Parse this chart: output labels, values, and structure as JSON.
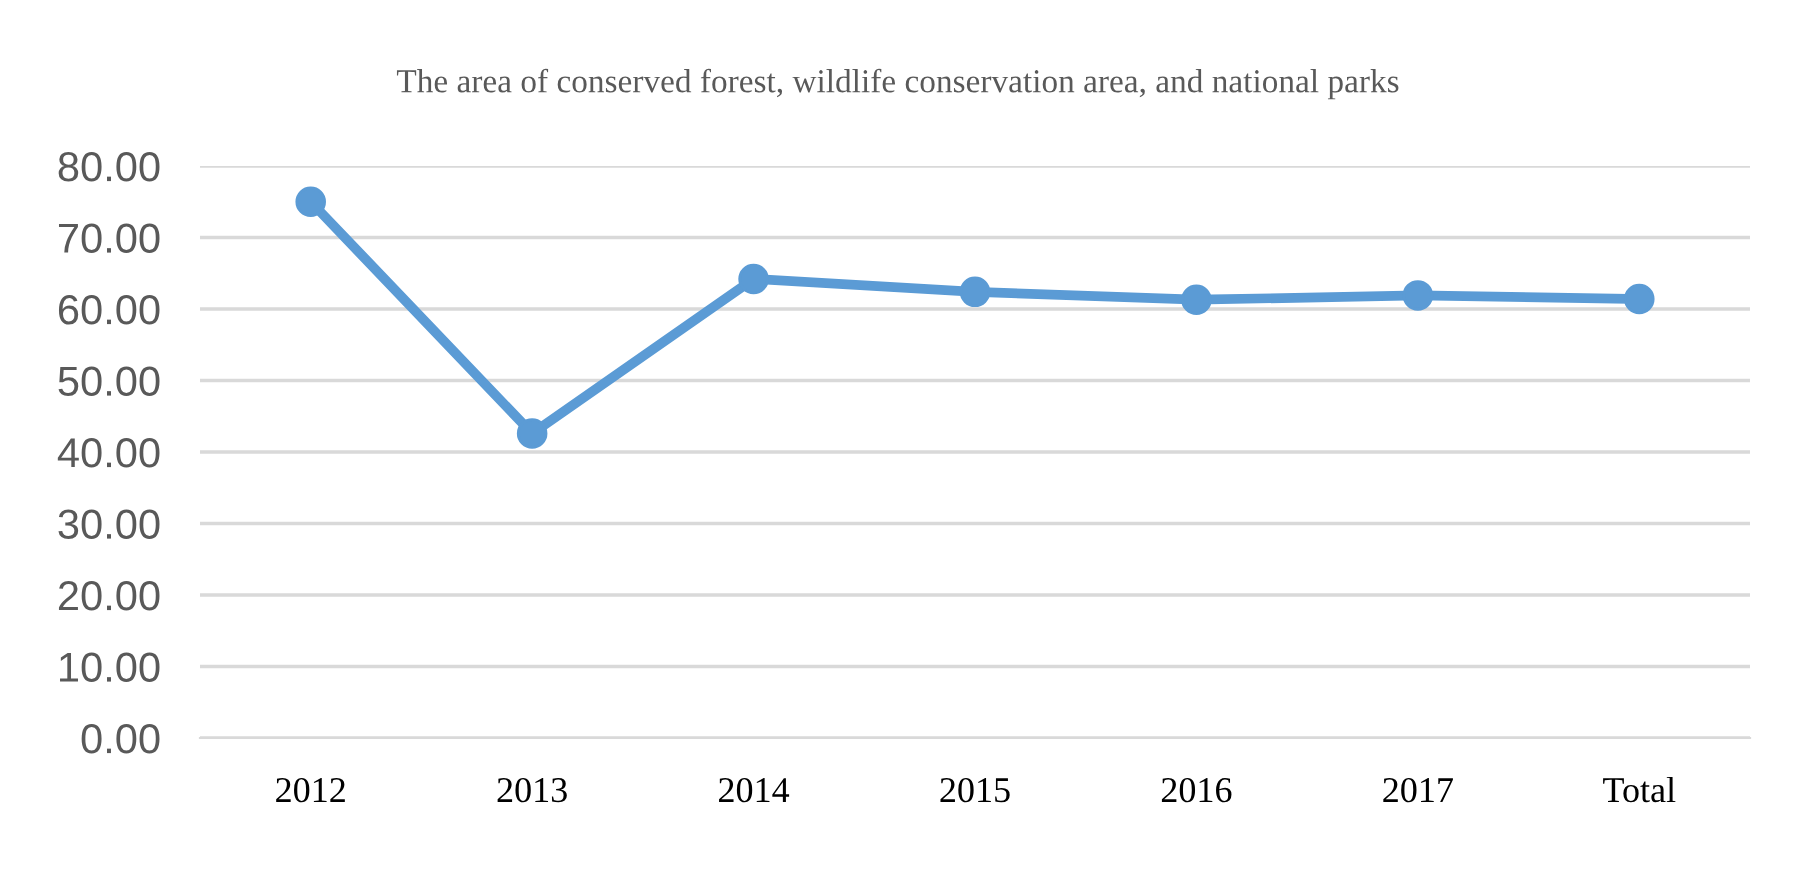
{
  "chart_data": {
    "type": "line",
    "title": "The area of conserved forest, wildlife conservation area, and national parks",
    "categories": [
      "2012",
      "2013",
      "2014",
      "2015",
      "2016",
      "2017",
      "Total"
    ],
    "series": [
      {
        "color": "#5b9bd5",
        "values": [
          75.0,
          42.6,
          64.2,
          62.4,
          61.3,
          61.9,
          61.4
        ]
      }
    ],
    "ylim": [
      0,
      80
    ],
    "yticks": [
      {
        "value": 0,
        "label": "0.00"
      },
      {
        "value": 10,
        "label": "10.00"
      },
      {
        "value": 20,
        "label": "20.00"
      },
      {
        "value": 30,
        "label": "30.00"
      },
      {
        "value": 40,
        "label": "40.00"
      },
      {
        "value": 50,
        "label": "50.00"
      },
      {
        "value": 60,
        "label": "60.00"
      },
      {
        "value": 70,
        "label": "70.00"
      },
      {
        "value": 80,
        "label": "80.00"
      }
    ],
    "grid": "y",
    "marker": "circle",
    "line_style": "solid",
    "legend": false
  }
}
